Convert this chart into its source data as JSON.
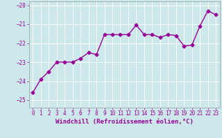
{
  "xlabel": "Windchill (Refroidissement éolien,°C)",
  "x": [
    0,
    1,
    2,
    3,
    4,
    5,
    6,
    7,
    8,
    9,
    10,
    11,
    12,
    13,
    14,
    15,
    16,
    17,
    18,
    19,
    20,
    21,
    22,
    23
  ],
  "y": [
    -24.6,
    -23.9,
    -23.5,
    -23.0,
    -23.0,
    -23.0,
    -22.8,
    -22.5,
    -22.6,
    -21.55,
    -21.55,
    -21.55,
    -21.55,
    -21.05,
    -21.55,
    -21.55,
    -21.7,
    -21.55,
    -21.6,
    -22.15,
    -22.1,
    -21.1,
    -20.3,
    -20.5
  ],
  "line_color": "#990099",
  "marker": "D",
  "marker_size": 2.5,
  "line_width": 1.0,
  "bg_color": "#cce8ea",
  "grid_color": "#ffffff",
  "ylim": [
    -25.4,
    -19.8
  ],
  "xlim": [
    -0.5,
    23.5
  ],
  "yticks": [
    -25,
    -24,
    -23,
    -22,
    -21,
    -20
  ],
  "xticks": [
    0,
    1,
    2,
    3,
    4,
    5,
    6,
    7,
    8,
    9,
    10,
    11,
    12,
    13,
    14,
    15,
    16,
    17,
    18,
    19,
    20,
    21,
    22,
    23
  ],
  "tick_color": "#990099",
  "tick_fontsize": 5.5,
  "xlabel_fontsize": 6.5,
  "spine_color": "#999999"
}
